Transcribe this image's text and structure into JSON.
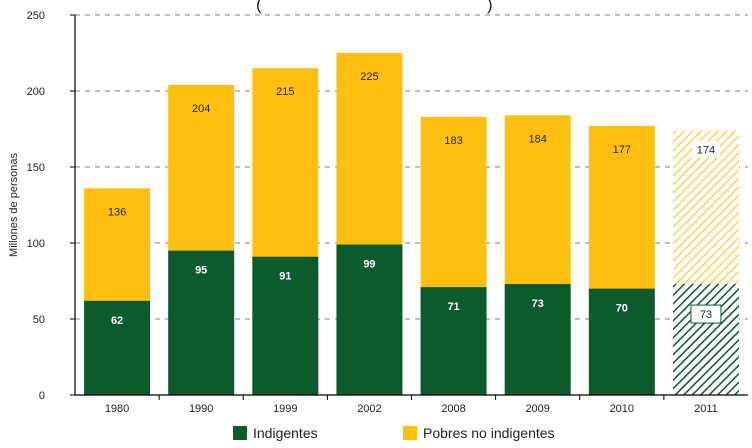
{
  "chart_data": {
    "type": "bar",
    "stacked": true,
    "title": "(",
    "title_suffix": ")",
    "ylabel": "Millones de personas",
    "xlabel": "",
    "ylim": [
      0,
      250
    ],
    "yticks": [
      "0",
      "50",
      "100",
      "150",
      "200",
      "250"
    ],
    "grid": true,
    "categories": [
      "1980",
      "1990",
      "1999",
      "2002",
      "2008",
      "2009",
      "2010",
      "2011"
    ],
    "projected_categories": [
      "2011"
    ],
    "series": [
      {
        "name": "Indigentes",
        "color": "#0d5a2c",
        "values": [
          62,
          95,
          91,
          99,
          71,
          73,
          70,
          73
        ],
        "labels": [
          "62",
          "95",
          "91",
          "99",
          "71",
          "73",
          "70",
          "73"
        ]
      },
      {
        "name": "Pobres no indigentes",
        "color": "#fdc010",
        "totals": [
          136,
          204,
          215,
          225,
          183,
          184,
          177,
          174
        ],
        "labels": [
          "136",
          "204",
          "215",
          "225",
          "183",
          "184",
          "177",
          "174"
        ]
      }
    ],
    "legend_position": "bottom"
  }
}
